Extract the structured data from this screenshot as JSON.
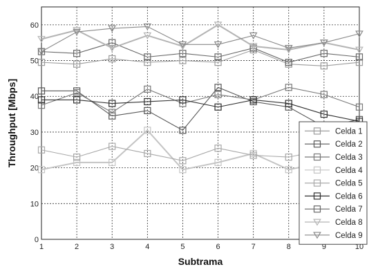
{
  "chart_data": {
    "type": "line",
    "xlabel": "Subtrama",
    "ylabel": "Throughput [Mbps]",
    "xlim": [
      1,
      10
    ],
    "ylim": [
      0,
      65
    ],
    "xticks": [
      1,
      2,
      3,
      4,
      5,
      6,
      7,
      8,
      9,
      10
    ],
    "yticks": [
      0,
      10,
      20,
      30,
      40,
      50,
      60
    ],
    "grid": "dashed",
    "legend_position": "bottom-right",
    "x": [
      1,
      2,
      3,
      4,
      5,
      6,
      7,
      8,
      9,
      10
    ],
    "series": [
      {
        "name": "Celda 1",
        "marker": "square",
        "color": "#9a9a9a",
        "values": [
          49.5,
          49,
          50.5,
          49.5,
          50,
          49.5,
          53,
          49,
          48.5,
          49.5
        ]
      },
      {
        "name": "Celda 2",
        "marker": "square",
        "color": "#555555",
        "values": [
          41.5,
          41.5,
          34.5,
          36,
          30.5,
          42.5,
          38.5,
          37,
          31.5,
          33.5
        ]
      },
      {
        "name": "Celda 3",
        "marker": "square",
        "color": "#777777",
        "values": [
          37.5,
          41,
          35.5,
          42,
          38,
          40.5,
          39,
          42.5,
          40.5,
          37
        ]
      },
      {
        "name": "Celda 4",
        "marker": "square",
        "color": "#c4c4c4",
        "values": [
          19.5,
          21.5,
          21.5,
          30.5,
          19.5,
          21.5,
          24,
          19.5,
          21.5,
          24
        ]
      },
      {
        "name": "Celda 5",
        "marker": "square",
        "color": "#a8a8a8",
        "values": [
          25,
          23,
          26,
          24,
          22,
          25.5,
          23.5,
          23,
          25,
          24.5
        ]
      },
      {
        "name": "Celda 6",
        "marker": "square",
        "color": "#2e2e2e",
        "values": [
          39,
          39,
          38,
          38.5,
          39,
          37,
          39,
          38,
          35,
          33
        ]
      },
      {
        "name": "Celda 7",
        "marker": "square",
        "color": "#666666",
        "values": [
          52.5,
          52,
          55,
          51,
          52,
          51,
          53.5,
          49.5,
          52,
          51
        ]
      },
      {
        "name": "Celda 8",
        "marker": "triangle-down",
        "color": "#b4b4b4",
        "values": [
          56,
          58.5,
          53.5,
          57,
          54,
          60,
          54,
          53,
          55,
          53
        ]
      },
      {
        "name": "Celda 9",
        "marker": "triangle-down",
        "color": "#888888",
        "values": [
          52.5,
          58,
          59,
          59.5,
          54.5,
          54.5,
          57,
          53.5,
          55,
          57.5
        ]
      }
    ]
  }
}
